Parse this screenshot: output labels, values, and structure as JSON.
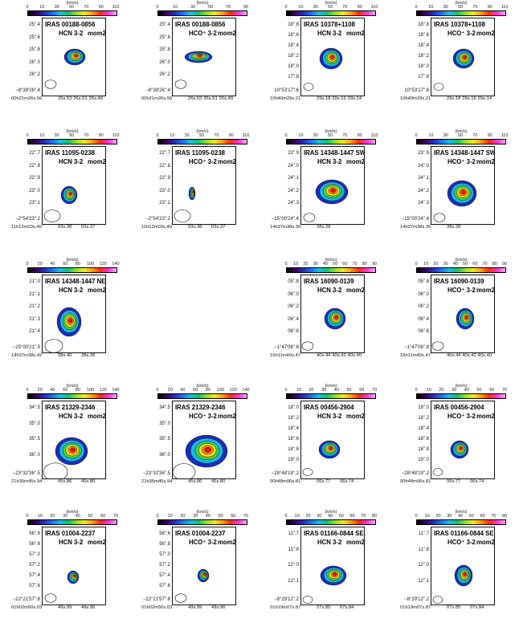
{
  "figure": {
    "unit_label": "(km/s)",
    "moment_label": "mom2",
    "panels": [
      {
        "source": "IRAS 00188-0856",
        "line": "HCN 3-2",
        "ticks": [
          "0",
          "10",
          "30",
          "50",
          "70",
          "90",
          "110"
        ],
        "dec_ticks": [
          "25\".4",
          "25\".6",
          "25\".8",
          "26\".0",
          "26\".2"
        ],
        "dec_origin": "−8°39'26\".4",
        "ra_ticks": [
          "00h21m26s.56",
          "26s.53",
          "26s.51",
          "26s.49"
        ]
      },
      {
        "source": "IRAS 00188-0856",
        "line": "HCO⁺ 3-2",
        "ticks": [
          "0",
          "10",
          "30",
          "50",
          "70",
          "90"
        ],
        "dec_ticks": [
          "25\".4",
          "25\".6",
          "25\".8",
          "26\".0",
          "26\".2"
        ],
        "dec_origin": "−8°39'26\".4",
        "ra_ticks": [
          "00h21m26s.56",
          "26s.53",
          "26s.51",
          "26s.49"
        ]
      },
      {
        "source": "IRAS 10378+1108",
        "line": "HCN 3-2",
        "ticks": [
          "0",
          "10",
          "30",
          "50",
          "70",
          "90",
          "110"
        ],
        "dec_ticks": [
          "18\".8",
          "18\".6",
          "18\".4",
          "18\".2",
          "18\".0",
          "17\".8"
        ],
        "dec_origin": "10°53'17\".6",
        "ra_ticks": [
          "10h40m29s.21",
          "29s.18",
          "29s.16",
          "29s.14"
        ]
      },
      {
        "source": "IRAS 10378+1108",
        "line": "HCO⁺ 3-2",
        "ticks": [
          "0",
          "10",
          "30",
          "50",
          "70",
          "90",
          "110"
        ],
        "dec_ticks": [
          "18\".8",
          "18\".6",
          "18\".4",
          "18\".2",
          "18\".0",
          "17\".8"
        ],
        "dec_origin": "10°53'17\".6",
        "ra_ticks": [
          "10h40m29s.21",
          "29s.18",
          "29s.16",
          "29s.14"
        ]
      },
      {
        "source": "IRAS 11095-0238",
        "line": "HCN 3-2",
        "ticks": [
          "0",
          "10",
          "30",
          "50",
          "70",
          "90",
          "110"
        ],
        "dec_ticks": [
          "22\".7",
          "22\".8",
          "22\".9",
          "23\".0",
          "23\".1"
        ],
        "dec_origin": "−2°54'23\".2",
        "ra_ticks": [
          "11h12m03s.40",
          "03s.38",
          "03s.37"
        ]
      },
      {
        "source": "IRAS 11095-0238",
        "line": "HCO⁺ 3-2",
        "ticks": [
          "0",
          "10",
          "30",
          "50",
          "70",
          "90",
          "110"
        ],
        "dec_ticks": [
          "22\".7",
          "22\".8",
          "22\".9",
          "23\".0",
          "23\".1"
        ],
        "dec_origin": "−2°54'23\".2",
        "ra_ticks": [
          "11h12m03s.40",
          "03s.38",
          "03s.37"
        ]
      },
      {
        "source": "IRAS 14348-1447 SW",
        "line": "HCN 3-2",
        "ticks": [
          "0",
          "10",
          "30",
          "50",
          "70",
          "90",
          "110"
        ],
        "dec_ticks": [
          "23\".9",
          "24\".0",
          "24\".1",
          "24\".2",
          "24\".3"
        ],
        "dec_origin": "−15°00'24\".4",
        "ra_ticks": [
          "14h37m38s.30",
          "38s.28"
        ]
      },
      {
        "source": "IRAS 14348-1447 SW",
        "line": "HCO⁺ 3-2",
        "ticks": [
          "0",
          "10",
          "30",
          "50",
          "70",
          "90",
          "110"
        ],
        "dec_ticks": [
          "23\".9",
          "24\".0",
          "24\".1",
          "24\".2",
          "24\".3"
        ],
        "dec_origin": "−15°00'24\".4",
        "ra_ticks": [
          "14h37m38s.30",
          "38s.28"
        ]
      },
      {
        "source": "IRAS 14348-1447 NE",
        "line": "HCN 3-2",
        "ticks": [
          "0",
          "20",
          "40",
          "60",
          "80",
          "100",
          "120",
          "140"
        ],
        "dec_ticks": [
          "21\".0",
          "21\".1",
          "21\".2",
          "21\".3",
          "21\".4"
        ],
        "dec_origin": "−15°00'21\".5",
        "ra_ticks": [
          "14h37m38s.42",
          "38s.40",
          "38s.38"
        ]
      },
      {
        "source": "",
        "line": "",
        "ticks": [],
        "dec_ticks": [],
        "dec_origin": "",
        "ra_ticks": []
      },
      {
        "source": "IRAS 16090-0139",
        "line": "HCN 3-2",
        "ticks": [
          "0",
          "10",
          "20",
          "30",
          "40",
          "50",
          "60",
          "70",
          "80",
          "90"
        ],
        "dec_ticks": [
          "05\".8",
          "06\".0",
          "06\".2",
          "06\".4",
          "06\".6"
        ],
        "dec_origin": "−1°47'06\".8",
        "ra_ticks": [
          "16h11m40s.47",
          "40s.44",
          "40s.42",
          "40s.40"
        ]
      },
      {
        "source": "IRAS 16090-0139",
        "line": "HCO⁺ 3-2",
        "ticks": [
          "0",
          "10",
          "20",
          "30",
          "40",
          "50",
          "60",
          "70",
          "80",
          "90"
        ],
        "dec_ticks": [
          "05\".8",
          "06\".0",
          "06\".2",
          "06\".4",
          "06\".6"
        ],
        "dec_origin": "−1°47'06\".8",
        "ra_ticks": [
          "16h11m40s.47",
          "40s.44",
          "40s.42",
          "40s.40"
        ]
      },
      {
        "source": "IRAS 21329-2346",
        "line": "HCN 3-2",
        "ticks": [
          "0",
          "20",
          "40",
          "60",
          "80",
          "100",
          "120",
          "140"
        ],
        "dec_ticks": [
          "34\".5",
          "35\".0",
          "35\".5",
          "36\".0"
        ],
        "dec_origin": "−23°32'36\".5",
        "ra_ticks": [
          "21h35m45s.94",
          "45s.86",
          "45s.80"
        ]
      },
      {
        "source": "IRAS 21329-2346",
        "line": "HCO⁺ 3-2",
        "ticks": [
          "0",
          "20",
          "40",
          "60",
          "80",
          "100",
          "120",
          "140"
        ],
        "dec_ticks": [
          "34\".5",
          "35\".0",
          "35\".5",
          "36\".0"
        ],
        "dec_origin": "−23°32'36\".5",
        "ra_ticks": [
          "21h35m45s.94",
          "45s.86",
          "45s.80"
        ]
      },
      {
        "source": "IRAS 00456-2904",
        "line": "HCN 3-2",
        "ticks": [
          "0",
          "10",
          "20",
          "30",
          "40",
          "50",
          "60",
          "70"
        ],
        "dec_ticks": [
          "18\".0",
          "18\".2",
          "18\".4",
          "18\".6",
          "18\".8",
          "19\".0"
        ],
        "dec_origin": "−28°48'19\".2",
        "ra_ticks": [
          "00h48m06s.81",
          "06s.77",
          "06s.74"
        ]
      },
      {
        "source": "IRAS 00456-2904",
        "line": "HCO⁺ 3-2",
        "ticks": [
          "0",
          "10",
          "20",
          "30",
          "40",
          "50",
          "60",
          "70"
        ],
        "dec_ticks": [
          "18\".0",
          "18\".2",
          "18\".4",
          "18\".6",
          "18\".8",
          "19\".0"
        ],
        "dec_origin": "−28°48'19\".2",
        "ra_ticks": [
          "00h48m06s.81",
          "06s.77",
          "06s.74"
        ]
      },
      {
        "source": "IRAS 01004-2237",
        "line": "HCN 3-2",
        "ticks": [
          "0",
          "10",
          "20",
          "30",
          "40",
          "50",
          "60",
          "70"
        ],
        "dec_ticks": [
          "56\".6",
          "56\".8",
          "57\".0",
          "57\".2",
          "57\".4",
          "57\".6"
        ],
        "dec_origin": "−22°21'57\".8",
        "ra_ticks": [
          "01h02m50s.03",
          "49s.99",
          "49s.96"
        ]
      },
      {
        "source": "IRAS 01004-2237",
        "line": "HCO⁺ 3-2",
        "ticks": [
          "0",
          "10",
          "20",
          "30",
          "40",
          "50",
          "60",
          "70"
        ],
        "dec_ticks": [
          "56\".6",
          "56\".8",
          "57\".0",
          "57\".2",
          "57\".4",
          "57\".6"
        ],
        "dec_origin": "−22°21'57\".8",
        "ra_ticks": [
          "01h02m50s.03",
          "49s.99",
          "49s.96"
        ]
      },
      {
        "source": "IRAS 01166-0844 SE",
        "line": "HCN 3-2",
        "ticks": [
          "0",
          "10",
          "20",
          "30",
          "40",
          "50",
          "60",
          "70",
          "80"
        ],
        "dec_ticks": [
          "11\".7",
          "11\".8",
          "12\".0",
          "12\".1"
        ],
        "dec_origin": "−8°29'12\".2",
        "ra_ticks": [
          "01h19m07s.87",
          "07s.85",
          "07s.84"
        ]
      },
      {
        "source": "IRAS 01166-0844 SE",
        "line": "HCO⁺ 3-2",
        "ticks": [
          "0",
          "10",
          "20",
          "30",
          "40",
          "50",
          "60",
          "70",
          "80"
        ],
        "dec_ticks": [
          "11\".7",
          "11\".8",
          "12\".0",
          "12\".1"
        ],
        "dec_origin": "−8°29'12\".2",
        "ra_ticks": [
          "01h19m07s.87",
          "07s.85",
          "07s.84"
        ]
      }
    ]
  }
}
